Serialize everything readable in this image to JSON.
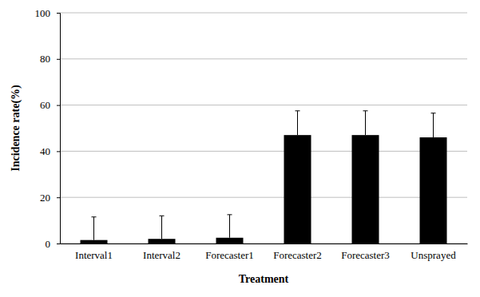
{
  "chart_data": {
    "type": "bar",
    "x_label": "Treatment",
    "y_label": "Incidence rate(%)",
    "categories": [
      "Interval1",
      "Interval2",
      "Forecaster1",
      "Forecaster2",
      "Forecaster3",
      "Unsprayed"
    ],
    "values": [
      1.5,
      2,
      2.5,
      47,
      47,
      46
    ],
    "errors": [
      10,
      10,
      10,
      10.5,
      10.5,
      10.5
    ],
    "color": "#000000",
    "ylim": [
      0,
      100
    ],
    "yticks": [
      0,
      20,
      40,
      60,
      80,
      100
    ],
    "grid": true
  }
}
